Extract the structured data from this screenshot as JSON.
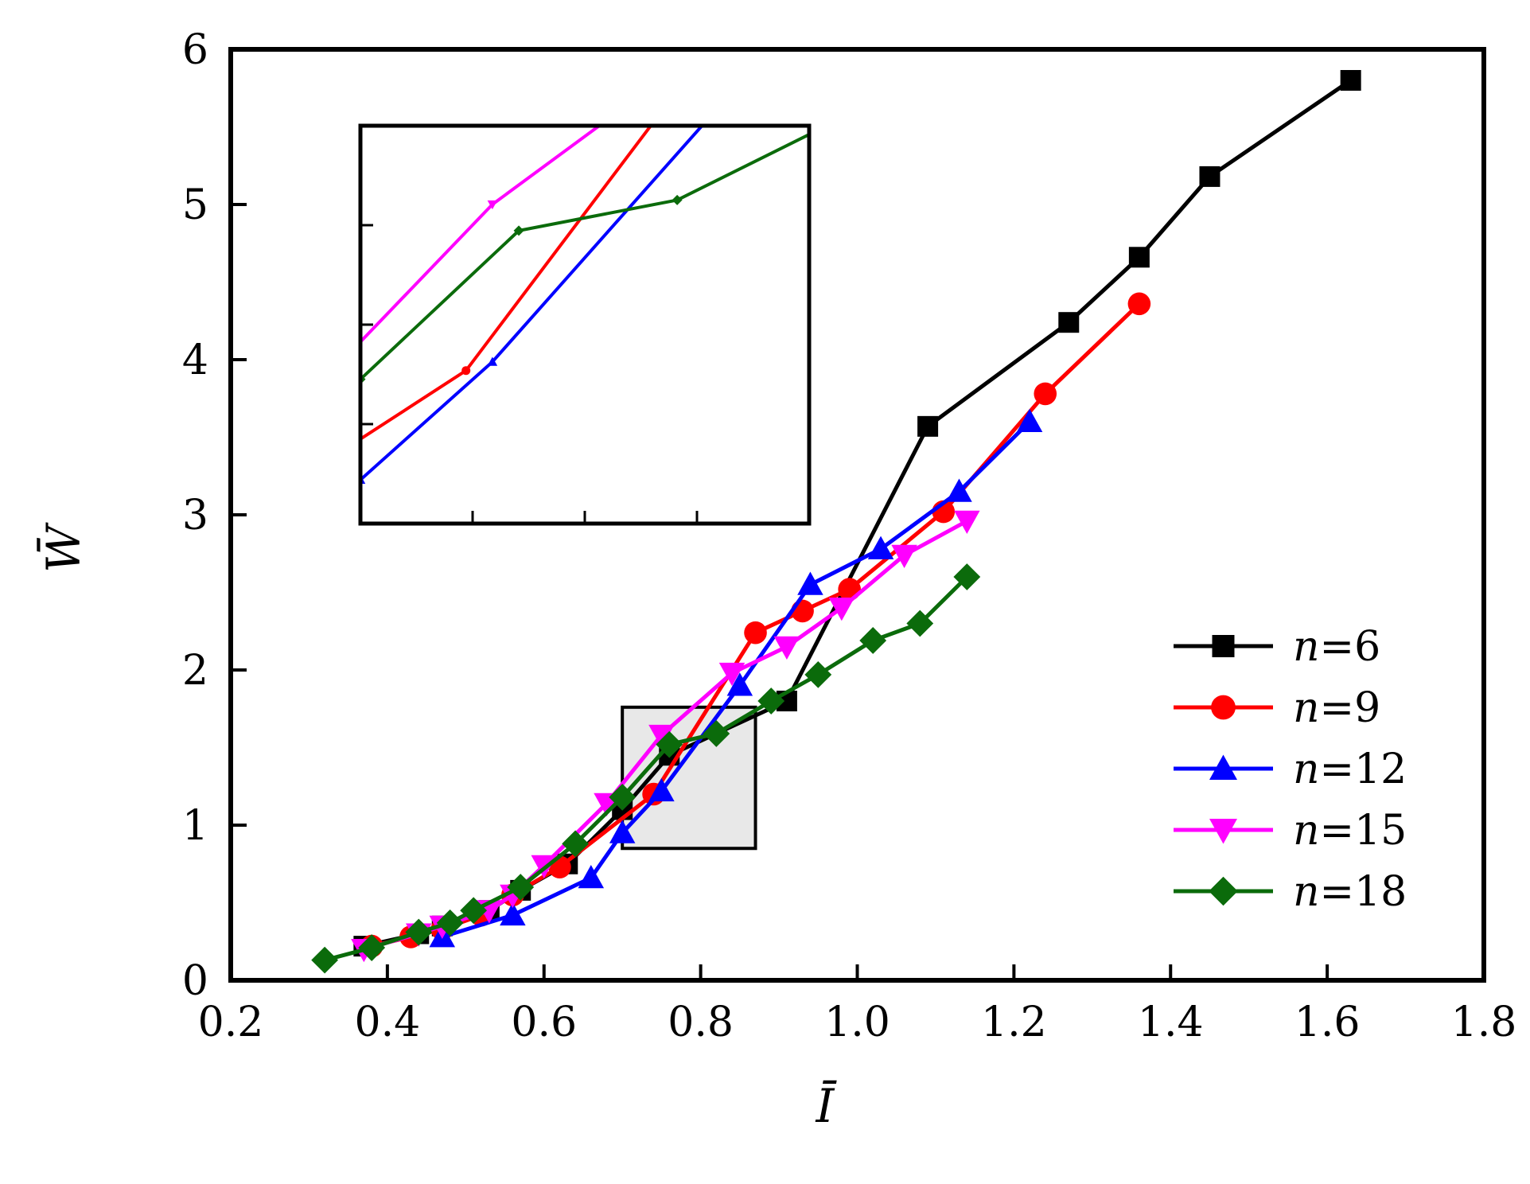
{
  "chart_data": {
    "type": "line",
    "title": "",
    "xlabel": "Ī",
    "ylabel": "W̄",
    "xlim": [
      0.2,
      1.8
    ],
    "ylim": [
      0,
      6
    ],
    "xticks": [
      "0.2",
      "0.4",
      "0.6",
      "0.8",
      "1.0",
      "1.2",
      "1.4",
      "1.6",
      "1.8"
    ],
    "yticks": [
      "0",
      "1",
      "2",
      "3",
      "4",
      "5",
      "6"
    ],
    "grid": false,
    "legend_position": "bottom-right",
    "series": [
      {
        "name": "n=6",
        "color": "#000000",
        "marker": "square",
        "points": [
          [
            0.37,
            0.22
          ],
          [
            0.44,
            0.3
          ],
          [
            0.47,
            0.35
          ],
          [
            0.53,
            0.45
          ],
          [
            0.57,
            0.58
          ],
          [
            0.63,
            0.75
          ],
          [
            0.7,
            1.1
          ],
          [
            0.76,
            1.45
          ],
          [
            0.91,
            1.8
          ],
          [
            1.09,
            3.57
          ],
          [
            1.27,
            4.24
          ],
          [
            1.36,
            4.66
          ],
          [
            1.45,
            5.18
          ],
          [
            1.63,
            5.8
          ]
        ]
      },
      {
        "name": "n=9",
        "color": "#ff0000",
        "marker": "circle",
        "points": [
          [
            0.38,
            0.22
          ],
          [
            0.43,
            0.28
          ],
          [
            0.47,
            0.33
          ],
          [
            0.52,
            0.42
          ],
          [
            0.56,
            0.55
          ],
          [
            0.62,
            0.73
          ],
          [
            0.74,
            1.2
          ],
          [
            0.87,
            2.24
          ],
          [
            0.93,
            2.38
          ],
          [
            0.99,
            2.52
          ],
          [
            1.11,
            3.02
          ],
          [
            1.24,
            3.78
          ],
          [
            1.36,
            4.36
          ]
        ]
      },
      {
        "name": "n=12",
        "color": "#0000ff",
        "marker": "triangle-up",
        "points": [
          [
            0.47,
            0.28
          ],
          [
            0.56,
            0.42
          ],
          [
            0.66,
            0.66
          ],
          [
            0.7,
            0.95
          ],
          [
            0.75,
            1.22
          ],
          [
            0.85,
            1.9
          ],
          [
            0.94,
            2.55
          ],
          [
            1.03,
            2.78
          ],
          [
            1.13,
            3.15
          ],
          [
            1.22,
            3.6
          ]
        ]
      },
      {
        "name": "n=15",
        "color": "#ff00ff",
        "marker": "triangle-down",
        "points": [
          [
            0.37,
            0.2
          ],
          [
            0.44,
            0.3
          ],
          [
            0.47,
            0.35
          ],
          [
            0.53,
            0.45
          ],
          [
            0.56,
            0.55
          ],
          [
            0.6,
            0.74
          ],
          [
            0.68,
            1.14
          ],
          [
            0.75,
            1.58
          ],
          [
            0.84,
            1.98
          ],
          [
            0.91,
            2.15
          ],
          [
            0.98,
            2.4
          ],
          [
            1.06,
            2.74
          ],
          [
            1.14,
            2.96
          ]
        ]
      },
      {
        "name": "n=18",
        "color": "#0b6b0b",
        "marker": "diamond",
        "points": [
          [
            0.32,
            0.13
          ],
          [
            0.38,
            0.21
          ],
          [
            0.44,
            0.31
          ],
          [
            0.48,
            0.37
          ],
          [
            0.51,
            0.45
          ],
          [
            0.57,
            0.6
          ],
          [
            0.64,
            0.88
          ],
          [
            0.7,
            1.18
          ],
          [
            0.76,
            1.52
          ],
          [
            0.82,
            1.59
          ],
          [
            0.89,
            1.8
          ],
          [
            0.95,
            1.97
          ],
          [
            1.02,
            2.19
          ],
          [
            1.08,
            2.3
          ],
          [
            1.14,
            2.6
          ]
        ]
      }
    ],
    "inset": {
      "highlight_region": {
        "x": [
          0.7,
          0.87
        ],
        "y": [
          0.85,
          1.76
        ]
      },
      "grid": false,
      "xlim": [
        0.7,
        0.87
      ],
      "ylim": [
        0.85,
        1.76
      ]
    }
  }
}
